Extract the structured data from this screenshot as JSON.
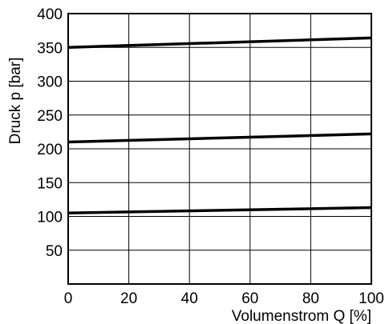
{
  "chart_data": {
    "type": "line",
    "title": "",
    "xlabel": "Volumenstrom Q [%]",
    "ylabel": "Druck p [bar]",
    "xlim": [
      0,
      100
    ],
    "ylim": [
      0,
      400
    ],
    "xticks": [
      0,
      20,
      40,
      60,
      80,
      100
    ],
    "yticks": [
      50,
      100,
      150,
      200,
      250,
      300,
      350,
      400
    ],
    "xtick_labels": [
      "0",
      "20",
      "40",
      "60",
      "80",
      "100"
    ],
    "ytick_labels": [
      "50",
      "100",
      "150",
      "200",
      "250",
      "300",
      "350",
      "400"
    ],
    "grid": true,
    "series": [
      {
        "x": [
          0,
          100
        ],
        "y": [
          350,
          364
        ]
      },
      {
        "x": [
          0,
          100
        ],
        "y": [
          210,
          222
        ]
      },
      {
        "x": [
          0,
          100
        ],
        "y": [
          105,
          113
        ]
      }
    ],
    "line_color": "#000000",
    "grid_color": "#000000"
  }
}
